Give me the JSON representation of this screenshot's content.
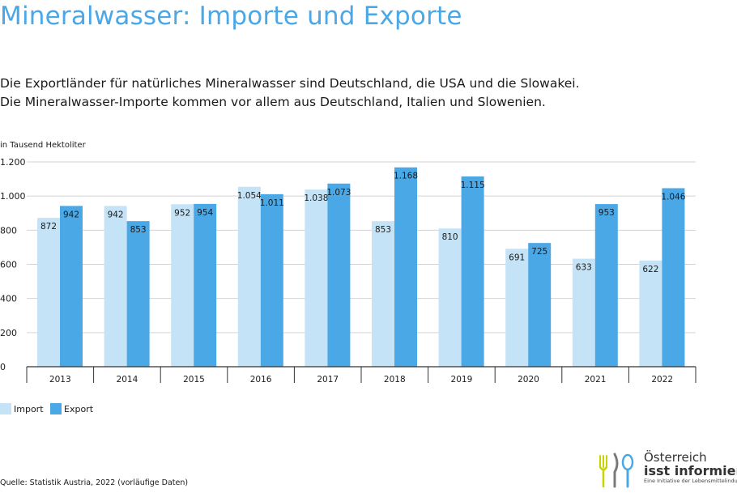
{
  "title": "Mineralwasser: Importe und Exporte",
  "subtitle": [
    "Die Exportländer für natürliches Mineralwasser sind Deutschland, die USA und die Slowakei.",
    "Die Mineralwasser-Importe kommen vor allem aus Deutschland, Italien und Slowenien."
  ],
  "source": "Quelle: Statistik Austria, 2022 (vorläufige Daten)",
  "logo": {
    "line1": "Österreich",
    "line2": "isst informiert",
    "line3": "Eine Initiative der Lebensmittelindustrie"
  },
  "colors": {
    "import": "#c5e3f7",
    "export": "#4aa8e6",
    "title": "#4aa8e6",
    "grid": "#d3d3d3",
    "axis": "#333333"
  },
  "chart_data": {
    "type": "bar",
    "ylabel": "in Tausend Hektoliter",
    "ylim": [
      0,
      1200
    ],
    "yticks": [
      0,
      200,
      400,
      600,
      800,
      1000,
      1200
    ],
    "ytick_labels": [
      "0",
      "200",
      "400",
      "600",
      "800",
      "1.000",
      "1.200"
    ],
    "grid": true,
    "legend_position": "bottom-left",
    "categories": [
      "2013",
      "2014",
      "2015",
      "2016",
      "2017",
      "2018",
      "2019",
      "2020",
      "2021",
      "2022"
    ],
    "series": [
      {
        "name": "Import",
        "values": [
          872,
          942,
          952,
          1054,
          1038,
          853,
          810,
          691,
          633,
          622
        ],
        "labels": [
          "872",
          "942",
          "952",
          "1.054",
          "1.038",
          "853",
          "810",
          "691",
          "633",
          "622"
        ]
      },
      {
        "name": "Export",
        "values": [
          942,
          853,
          954,
          1011,
          1073,
          1168,
          1115,
          725,
          953,
          1046
        ],
        "labels": [
          "942",
          "853",
          "954",
          "1.011",
          "1.073",
          "1.168",
          "1.115",
          "725",
          "953",
          "1.046"
        ]
      }
    ]
  }
}
